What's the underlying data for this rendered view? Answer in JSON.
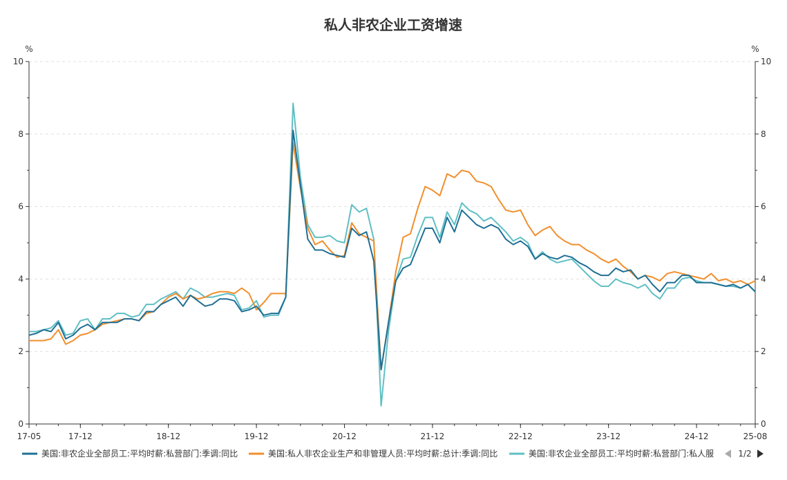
{
  "chart_data": {
    "type": "line",
    "title": "私人非农企业工资增速",
    "y_unit_left": "%",
    "y_unit_right": "%",
    "ylim": [
      0,
      10
    ],
    "y_ticks": [
      "0",
      "2",
      "4",
      "6",
      "8",
      "10"
    ],
    "x_tick_labels": [
      "17-05",
      "17-12",
      "18-12",
      "19-12",
      "20-12",
      "21-12",
      "22-12",
      "23-12",
      "24-12",
      "25-08"
    ],
    "x_tick_months": [
      "2017-05",
      "2017-12",
      "2018-12",
      "2019-12",
      "2020-12",
      "2021-12",
      "2022-12",
      "2023-12",
      "2024-12",
      "2025-08"
    ],
    "x": [
      "2017-05",
      "2017-06",
      "2017-07",
      "2017-08",
      "2017-09",
      "2017-10",
      "2017-11",
      "2017-12",
      "2018-01",
      "2018-02",
      "2018-03",
      "2018-04",
      "2018-05",
      "2018-06",
      "2018-07",
      "2018-08",
      "2018-09",
      "2018-10",
      "2018-11",
      "2018-12",
      "2019-01",
      "2019-02",
      "2019-03",
      "2019-04",
      "2019-05",
      "2019-06",
      "2019-07",
      "2019-08",
      "2019-09",
      "2019-10",
      "2019-11",
      "2019-12",
      "2020-01",
      "2020-02",
      "2020-03",
      "2020-04",
      "2020-05",
      "2020-06",
      "2020-07",
      "2020-08",
      "2020-09",
      "2020-10",
      "2020-11",
      "2020-12",
      "2021-01",
      "2021-02",
      "2021-03",
      "2021-04",
      "2021-05",
      "2021-06",
      "2021-07",
      "2021-08",
      "2021-09",
      "2021-10",
      "2021-11",
      "2021-12",
      "2022-01",
      "2022-02",
      "2022-03",
      "2022-04",
      "2022-05",
      "2022-06",
      "2022-07",
      "2022-08",
      "2022-09",
      "2022-10",
      "2022-11",
      "2022-12",
      "2023-01",
      "2023-02",
      "2023-03",
      "2023-04",
      "2023-05",
      "2023-06",
      "2023-07",
      "2023-08",
      "2023-09",
      "2023-10",
      "2023-11",
      "2023-12",
      "2024-01",
      "2024-02",
      "2024-03",
      "2024-04",
      "2024-05",
      "2024-06",
      "2024-07",
      "2024-08",
      "2024-09",
      "2024-10",
      "2024-11",
      "2024-12",
      "2025-01",
      "2025-02",
      "2025-03",
      "2025-04",
      "2025-05",
      "2025-06",
      "2025-07",
      "2025-08"
    ],
    "series": [
      {
        "name": "美国:非农企业全部员工:平均时薪:私营部门:季调:同比",
        "color": "#1f6f95",
        "values": [
          2.45,
          2.5,
          2.6,
          2.55,
          2.8,
          2.35,
          2.45,
          2.65,
          2.75,
          2.6,
          2.8,
          2.8,
          2.8,
          2.9,
          2.9,
          2.85,
          3.1,
          3.1,
          3.3,
          3.4,
          3.5,
          3.25,
          3.55,
          3.4,
          3.25,
          3.3,
          3.45,
          3.45,
          3.4,
          3.1,
          3.15,
          3.25,
          3.0,
          3.05,
          3.05,
          3.5,
          8.1,
          6.6,
          5.1,
          4.8,
          4.8,
          4.7,
          4.65,
          4.6,
          5.4,
          5.2,
          5.3,
          4.5,
          1.5,
          2.8,
          3.95,
          4.3,
          4.4,
          4.9,
          5.4,
          5.4,
          5.0,
          5.7,
          5.3,
          5.9,
          5.7,
          5.5,
          5.4,
          5.5,
          5.4,
          5.1,
          4.95,
          5.05,
          4.9,
          4.55,
          4.7,
          4.6,
          4.55,
          4.65,
          4.6,
          4.45,
          4.35,
          4.2,
          4.1,
          4.1,
          4.3,
          4.2,
          4.25,
          4.0,
          4.1,
          3.85,
          3.65,
          3.9,
          3.9,
          4.1,
          4.1,
          3.9,
          3.9,
          3.9,
          3.85,
          3.8,
          3.85,
          3.75,
          3.85,
          3.65
        ]
      },
      {
        "name": "美国:私人非农企业生产和非管理人员:平均时薪:总计:季调:同比",
        "color": "#f28e2b",
        "values": [
          2.3,
          2.3,
          2.3,
          2.35,
          2.6,
          2.2,
          2.3,
          2.45,
          2.5,
          2.6,
          2.75,
          2.8,
          2.85,
          2.9,
          2.9,
          2.85,
          3.05,
          3.1,
          3.3,
          3.5,
          3.6,
          3.45,
          3.55,
          3.45,
          3.5,
          3.6,
          3.65,
          3.65,
          3.6,
          3.75,
          3.6,
          3.15,
          3.35,
          3.6,
          3.6,
          3.6,
          7.75,
          6.5,
          5.4,
          4.95,
          5.05,
          4.8,
          4.6,
          4.65,
          5.55,
          5.25,
          5.15,
          5.05,
          1.5,
          2.8,
          4.2,
          5.15,
          5.25,
          5.95,
          6.55,
          6.45,
          6.3,
          6.9,
          6.8,
          7.0,
          6.95,
          6.7,
          6.65,
          6.55,
          6.2,
          5.9,
          5.85,
          5.9,
          5.5,
          5.2,
          5.35,
          5.45,
          5.2,
          5.05,
          4.95,
          4.95,
          4.8,
          4.7,
          4.55,
          4.45,
          4.55,
          4.35,
          4.2,
          4.0,
          4.1,
          4.05,
          3.95,
          4.15,
          4.2,
          4.15,
          4.1,
          4.05,
          4.0,
          4.15,
          3.95,
          4.0,
          3.9,
          3.95,
          3.85,
          3.95
        ]
      },
      {
        "name": "美国:非农企业全部员工:平均时薪:私营部门:私人服务业:季调:同比",
        "legend_label": "美国:非农企业全部员工:平均时薪:私营部门:私人服务",
        "color": "#5fbfc4",
        "values": [
          2.55,
          2.55,
          2.6,
          2.65,
          2.85,
          2.45,
          2.5,
          2.85,
          2.9,
          2.6,
          2.9,
          2.9,
          3.05,
          3.05,
          2.95,
          3.0,
          3.3,
          3.3,
          3.45,
          3.55,
          3.65,
          3.45,
          3.75,
          3.65,
          3.5,
          3.5,
          3.55,
          3.6,
          3.55,
          3.15,
          3.2,
          3.4,
          2.95,
          3.0,
          3.0,
          3.5,
          8.85,
          6.8,
          5.5,
          5.15,
          5.15,
          5.2,
          5.05,
          5.0,
          6.05,
          5.85,
          5.95,
          5.1,
          0.5,
          2.55,
          3.95,
          4.55,
          4.6,
          5.2,
          5.7,
          5.7,
          5.15,
          5.85,
          5.5,
          6.1,
          5.9,
          5.8,
          5.6,
          5.7,
          5.5,
          5.3,
          5.05,
          5.15,
          5.0,
          4.55,
          4.75,
          4.55,
          4.45,
          4.5,
          4.55,
          4.35,
          4.15,
          3.95,
          3.8,
          3.8,
          4.0,
          3.9,
          3.85,
          3.75,
          3.85,
          3.6,
          3.45,
          3.75,
          3.75,
          4.0,
          4.05,
          3.95,
          3.9,
          3.9,
          3.85,
          3.8,
          3.8,
          3.75,
          3.85,
          3.65
        ]
      }
    ],
    "legend": {
      "position": "bottom",
      "page": "1/2"
    },
    "grid": true
  }
}
